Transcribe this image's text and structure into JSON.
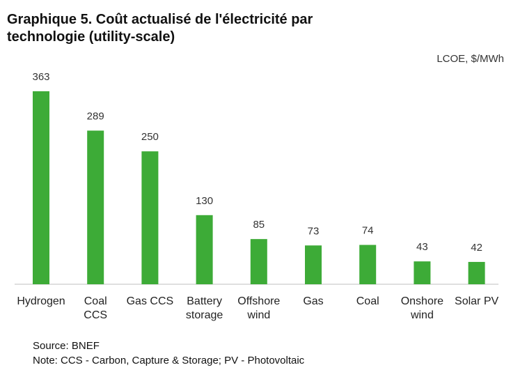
{
  "chart_data": {
    "type": "bar",
    "title": "Graphique 5. Coût actualisé de l'électricité par technologie (utility-scale)",
    "unit_label": "LCOE, $/MWh",
    "categories": [
      [
        "Hydrogen"
      ],
      [
        "Coal",
        "CCS"
      ],
      [
        "Gas CCS"
      ],
      [
        "Battery",
        "storage"
      ],
      [
        "Offshore",
        "wind"
      ],
      [
        "Gas"
      ],
      [
        "Coal"
      ],
      [
        "Onshore",
        "wind"
      ],
      [
        "Solar PV"
      ]
    ],
    "values": [
      363,
      289,
      250,
      130,
      85,
      73,
      74,
      43,
      42
    ],
    "ylim": [
      0,
      363
    ],
    "bar_color": "#3dab37",
    "grid": false,
    "legend": false
  },
  "footer": {
    "source": "Source: BNEF",
    "note": "Note: CCS - Carbon, Capture & Storage; PV - Photovoltaic"
  }
}
